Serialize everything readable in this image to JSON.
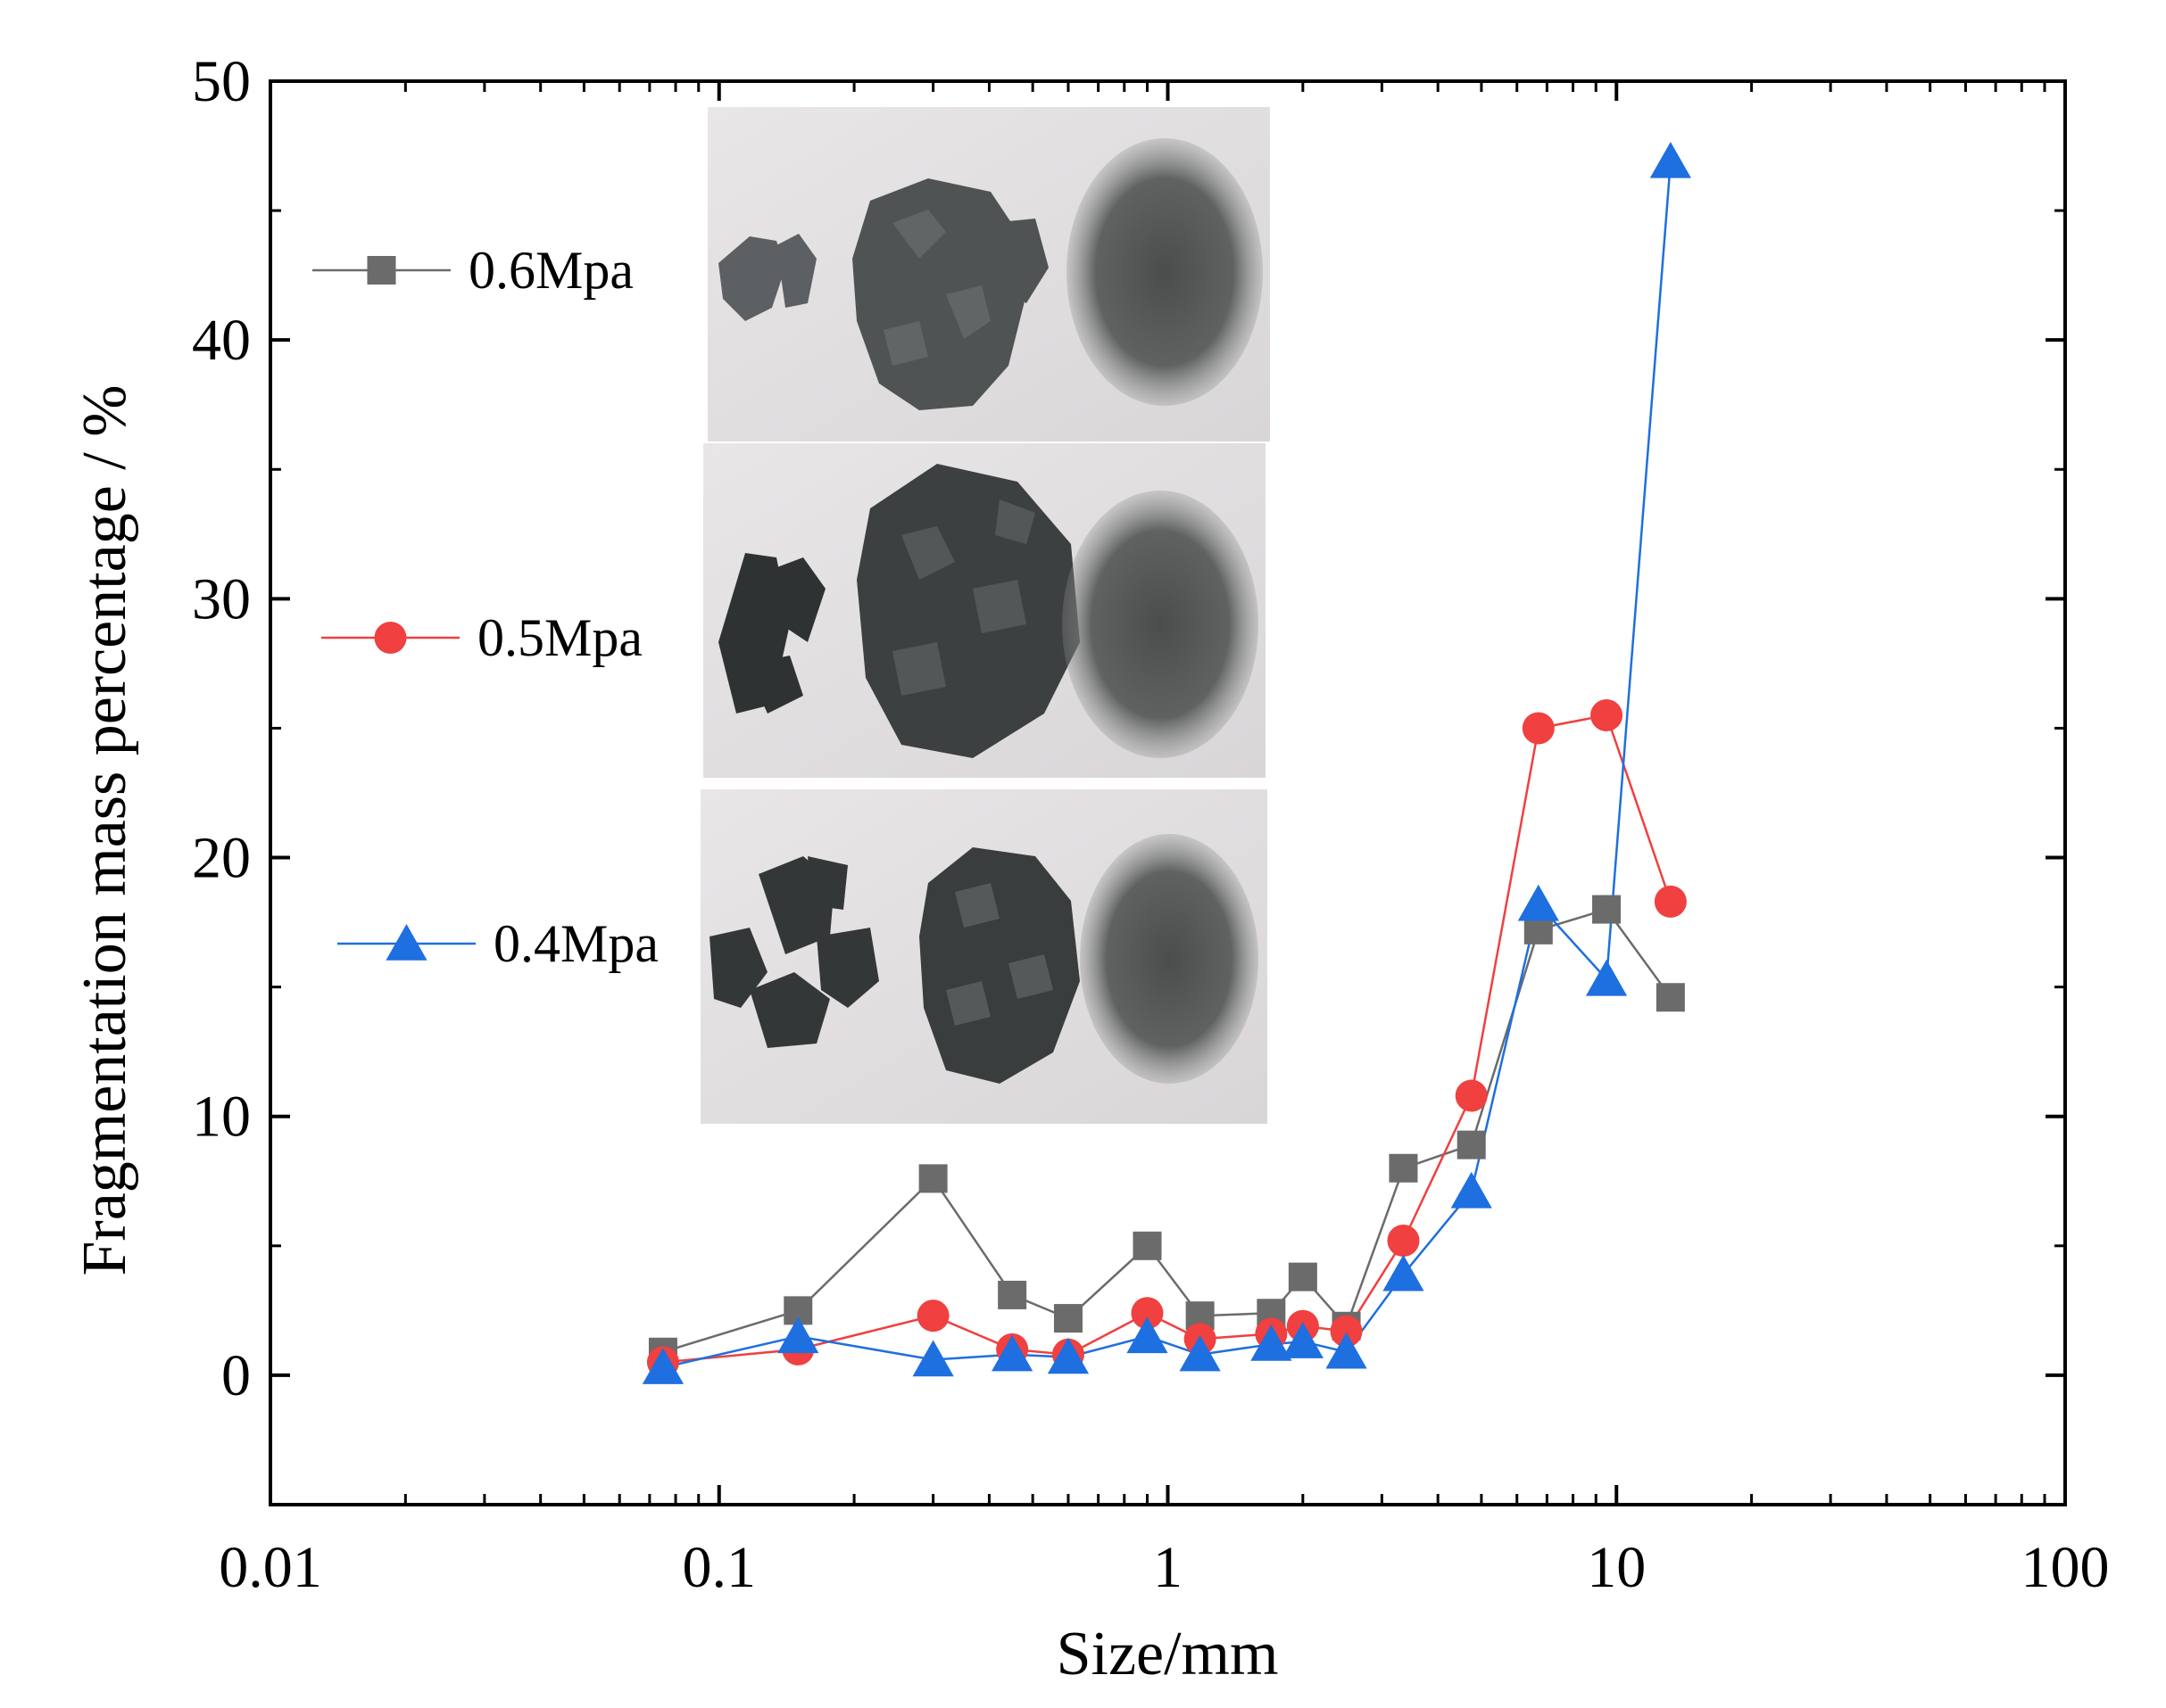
{
  "chart_data": {
    "type": "line",
    "xscale": "log",
    "xlim": [
      0.01,
      100
    ],
    "ylim": [
      -5,
      50
    ],
    "xlabel": "Size/mm",
    "ylabel": "Fragmentation mass percentage / %",
    "x_ticks": [
      {
        "value": 0.01,
        "label": "0.01"
      },
      {
        "value": 0.1,
        "label": "0.1"
      },
      {
        "value": 1,
        "label": "1"
      },
      {
        "value": 10,
        "label": "10"
      },
      {
        "value": 100,
        "label": "100"
      }
    ],
    "y_ticks": [
      {
        "value": 0,
        "label": "0"
      },
      {
        "value": 10,
        "label": "10"
      },
      {
        "value": 20,
        "label": "20"
      },
      {
        "value": 30,
        "label": "30"
      },
      {
        "value": 40,
        "label": "40"
      },
      {
        "value": 50,
        "label": "50"
      }
    ],
    "x": [
      0.075,
      0.15,
      0.3,
      0.45,
      0.6,
      0.9,
      1.18,
      1.7,
      2.0,
      2.5,
      3.35,
      4.75,
      6.7,
      9.5,
      13.2
    ],
    "series": [
      {
        "name": "0.6Mpa",
        "marker": "square",
        "color": "#6b6b6b",
        "values": [
          0.9,
          2.5,
          7.6,
          3.1,
          2.2,
          5.0,
          2.3,
          2.4,
          3.8,
          1.9,
          8.0,
          8.9,
          17.2,
          18.0,
          14.6
        ]
      },
      {
        "name": "0.5Mpa",
        "marker": "circle",
        "color": "#f04040",
        "values": [
          0.5,
          1.0,
          2.3,
          1.0,
          0.8,
          2.4,
          1.4,
          1.6,
          1.9,
          1.7,
          5.2,
          10.8,
          25.0,
          25.5,
          18.3
        ]
      },
      {
        "name": "0.4Mpa",
        "marker": "triangle",
        "color": "#1e6fe0",
        "values": [
          0.3,
          1.5,
          0.6,
          0.8,
          0.7,
          1.5,
          0.8,
          1.2,
          1.3,
          0.9,
          3.9,
          7.1,
          18.2,
          15.3,
          46.9
        ]
      }
    ],
    "inset": {
      "description_rows": 3
    }
  }
}
